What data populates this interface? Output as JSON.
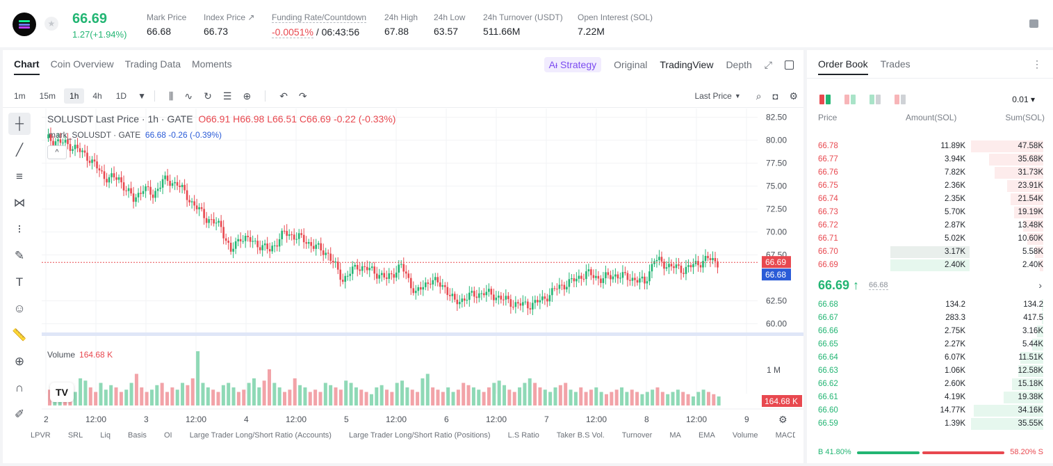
{
  "header": {
    "price": "66.69",
    "change": "1.27(+1.94%)",
    "stats": [
      {
        "label": "Mark Price",
        "value": "66.68"
      },
      {
        "label": "Index Price ↗",
        "value": "66.73"
      },
      {
        "label": "Funding Rate/Countdown",
        "value": "-0.0051%",
        "extra": "/ 06:43:56"
      },
      {
        "label": "24h High",
        "value": "67.88"
      },
      {
        "label": "24h Low",
        "value": "63.57"
      },
      {
        "label": "24h Turnover (USDT)",
        "value": "511.66M"
      },
      {
        "label": "Open Interest (SOL)",
        "value": "7.22M"
      }
    ]
  },
  "chart_tabs": [
    "Chart",
    "Coin Overview",
    "Trading Data",
    "Moments"
  ],
  "view_tabs": {
    "strategy": "Aᵻ Strategy",
    "original": "Original",
    "tradingview": "TradingView",
    "depth": "Depth"
  },
  "timeframes": [
    "1m",
    "15m",
    "1h",
    "4h",
    "1D"
  ],
  "price_type": "Last Price",
  "legend": {
    "main_title": "SOLUSDT Last Price · 1h · GATE",
    "o": "O66.91",
    "h": "H66.98",
    "l": "L66.51",
    "c": "C66.69",
    "chg": "-0.22 (-0.33%)",
    "mark_title": "mark_SOLUSDT · GATE",
    "mark_val": "66.68",
    "mark_chg": "-0.26 (-0.39%)",
    "volume": "Volume",
    "volume_val": "164.68 K"
  },
  "chart_data": {
    "type": "candlestick",
    "title": "SOLUSDT Last Price · 1h · GATE",
    "x_ticks": [
      "2",
      "12:00",
      "3",
      "12:00",
      "4",
      "12:00",
      "5",
      "12:00",
      "6",
      "12:00",
      "7",
      "12:00",
      "8",
      "12:00",
      "9"
    ],
    "y_ticks": [
      "82.50",
      "80.00",
      "77.50",
      "75.00",
      "72.50",
      "70.00",
      "67.50",
      "62.50",
      "60.00"
    ],
    "ylim": [
      59,
      83
    ],
    "last_price": "66.69",
    "mark_price": "66.68",
    "volume_axis": "1 M",
    "volume_last": "164.68 K",
    "close_path": [
      [
        0,
        80.2
      ],
      [
        6,
        79.8
      ],
      [
        12,
        79.2
      ],
      [
        18,
        78.0
      ],
      [
        24,
        76.0
      ],
      [
        30,
        75.8
      ],
      [
        36,
        73.5
      ],
      [
        40,
        74.8
      ],
      [
        44,
        74.0
      ],
      [
        48,
        75.6
      ],
      [
        54,
        75.3
      ],
      [
        60,
        73.2
      ],
      [
        66,
        71.5
      ],
      [
        72,
        70.6
      ],
      [
        76,
        67.8
      ],
      [
        80,
        69.5
      ],
      [
        86,
        68.8
      ],
      [
        92,
        68.0
      ],
      [
        98,
        69.9
      ],
      [
        104,
        69.4
      ],
      [
        110,
        68.5
      ],
      [
        116,
        67.6
      ],
      [
        122,
        64.8
      ],
      [
        128,
        66.3
      ],
      [
        134,
        65.8
      ],
      [
        140,
        64.9
      ],
      [
        146,
        66.3
      ],
      [
        152,
        63.3
      ],
      [
        158,
        64.8
      ],
      [
        164,
        64.0
      ],
      [
        168,
        62.3
      ],
      [
        174,
        63.0
      ],
      [
        180,
        63.4
      ],
      [
        186,
        62.9
      ],
      [
        192,
        62.2
      ],
      [
        198,
        62.0
      ],
      [
        204,
        62.6
      ],
      [
        210,
        63.9
      ],
      [
        216,
        64.6
      ],
      [
        222,
        65.5
      ],
      [
        228,
        64.9
      ],
      [
        234,
        65.3
      ],
      [
        240,
        65.0
      ],
      [
        246,
        64.5
      ],
      [
        250,
        67.0
      ],
      [
        256,
        66.3
      ],
      [
        262,
        65.9
      ],
      [
        268,
        66.6
      ],
      [
        272,
        67.1
      ],
      [
        276,
        66.69
      ]
    ]
  },
  "volume_data": [
    0.35,
    0.4,
    0.3,
    0.5,
    0.45,
    0.3,
    0.6,
    0.55,
    0.4,
    0.3,
    0.5,
    0.35,
    0.45,
    0.4,
    0.3,
    0.35,
    0.5,
    0.7,
    0.4,
    0.3,
    0.35,
    0.45,
    0.5,
    0.3,
    0.4,
    0.35,
    0.5,
    0.45,
    0.6,
    1.2,
    0.5,
    0.4,
    0.35,
    0.3,
    0.45,
    0.5,
    0.4,
    0.3,
    0.35,
    0.5,
    0.6,
    0.4,
    0.55,
    0.8,
    0.5,
    0.4,
    0.3,
    0.35,
    0.6,
    0.45,
    0.4,
    0.3,
    0.35,
    0.3,
    0.5,
    0.45,
    0.4,
    0.35,
    0.55,
    0.5,
    0.4,
    0.35,
    0.3,
    0.25,
    0.4,
    0.45,
    0.35,
    0.3,
    0.5,
    0.55,
    0.4,
    0.35,
    0.3,
    0.6,
    0.7,
    0.4,
    0.35,
    0.3,
    0.4,
    0.3,
    0.35,
    0.5,
    0.45,
    0.4,
    0.35,
    0.3,
    0.4,
    0.5,
    0.55,
    0.45,
    0.35,
    0.3,
    0.4,
    0.5,
    0.6,
    0.5,
    0.4,
    0.35,
    0.3,
    0.4,
    0.45,
    0.5,
    0.35,
    0.3,
    0.4,
    0.3,
    0.35,
    0.4,
    0.3,
    0.25,
    0.3,
    0.35,
    0.4,
    0.3,
    0.35,
    0.3,
    0.25,
    0.3,
    0.35,
    0.4,
    0.3,
    0.25,
    0.3,
    0.35,
    0.3,
    0.25,
    0.2,
    0.3,
    0.35,
    0.3,
    0.25,
    0.2
  ],
  "indicators": [
    "LPVR",
    "SRL",
    "Liq",
    "Basis",
    "OI",
    "Large Trader Long/Short Ratio (Accounts)",
    "Large Trader Long/Short Ratio (Positions)",
    "L.S Ratio",
    "Taker B.S Vol.",
    "Turnover",
    "MA",
    "EMA",
    "Volume",
    "MACD"
  ],
  "orderbook": {
    "tabs": [
      "Order Book",
      "Trades"
    ],
    "precision": "0.01",
    "headers": {
      "price": "Price",
      "amount": "Amount(SOL)",
      "sum": "Sum(SOL)"
    },
    "asks": [
      {
        "price": "66.78",
        "amount": "11.89K",
        "sum": "47.58K",
        "depth": 1.0
      },
      {
        "price": "66.77",
        "amount": "3.94K",
        "sum": "35.68K",
        "depth": 0.75
      },
      {
        "price": "66.76",
        "amount": "7.82K",
        "sum": "31.73K",
        "depth": 0.67
      },
      {
        "price": "66.75",
        "amount": "2.36K",
        "sum": "23.91K",
        "depth": 0.5
      },
      {
        "price": "66.74",
        "amount": "2.35K",
        "sum": "21.54K",
        "depth": 0.45
      },
      {
        "price": "66.73",
        "amount": "5.70K",
        "sum": "19.19K",
        "depth": 0.4
      },
      {
        "price": "66.72",
        "amount": "2.87K",
        "sum": "13.48K",
        "depth": 0.28
      },
      {
        "price": "66.71",
        "amount": "5.02K",
        "sum": "10.60K",
        "depth": 0.22
      },
      {
        "price": "66.70",
        "amount": "3.17K",
        "sum": "5.58K",
        "depth": 0.12,
        "highlight": true
      },
      {
        "price": "66.69",
        "amount": "2.40K",
        "sum": "2.40K",
        "depth": 0.05,
        "highlight2": true
      }
    ],
    "mid_price": "66.69 ↑",
    "mid_mark": "66.68",
    "bids": [
      {
        "price": "66.68",
        "amount": "134.2",
        "sum": "134.2",
        "depth": 0.0
      },
      {
        "price": "66.67",
        "amount": "283.3",
        "sum": "417.5",
        "depth": 0.01
      },
      {
        "price": "66.66",
        "amount": "2.75K",
        "sum": "3.16K",
        "depth": 0.09
      },
      {
        "price": "66.65",
        "amount": "2.27K",
        "sum": "5.44K",
        "depth": 0.15
      },
      {
        "price": "66.64",
        "amount": "6.07K",
        "sum": "11.51K",
        "depth": 0.32
      },
      {
        "price": "66.63",
        "amount": "1.06K",
        "sum": "12.58K",
        "depth": 0.35
      },
      {
        "price": "66.62",
        "amount": "2.60K",
        "sum": "15.18K",
        "depth": 0.43
      },
      {
        "price": "66.61",
        "amount": "4.19K",
        "sum": "19.38K",
        "depth": 0.55
      },
      {
        "price": "66.60",
        "amount": "14.77K",
        "sum": "34.16K",
        "depth": 0.96
      },
      {
        "price": "66.59",
        "amount": "1.39K",
        "sum": "35.55K",
        "depth": 1.0
      }
    ],
    "buy_ratio": "B 41.80%",
    "sell_ratio": "58.20% S"
  },
  "colors": {
    "up": "#22b573",
    "down": "#e8484f",
    "mark": "#2a5bd7",
    "accent": "#7b4bf0"
  }
}
